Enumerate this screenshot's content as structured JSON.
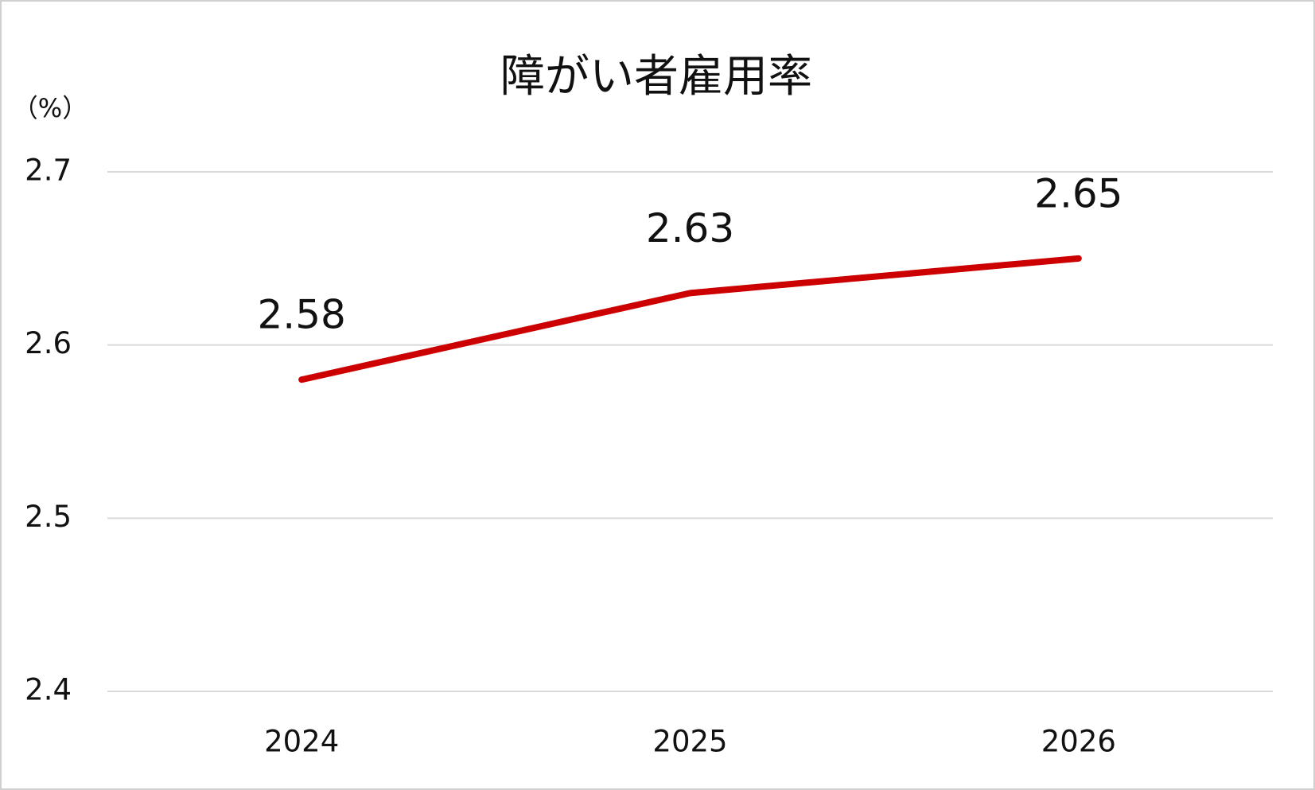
{
  "chart_data": {
    "type": "line",
    "title": "障がい者雇用率",
    "y_label": "（%）",
    "categories": [
      "2024",
      "2025",
      "2026"
    ],
    "series": [
      {
        "name": "障がい者雇用率",
        "color": "#cc0000",
        "values": [
          2.58,
          2.63,
          2.65
        ]
      }
    ],
    "ylim": [
      2.4,
      2.7
    ],
    "yticks": [
      2.4,
      2.5,
      2.6,
      2.7
    ],
    "grid": true,
    "data_labels": true
  }
}
